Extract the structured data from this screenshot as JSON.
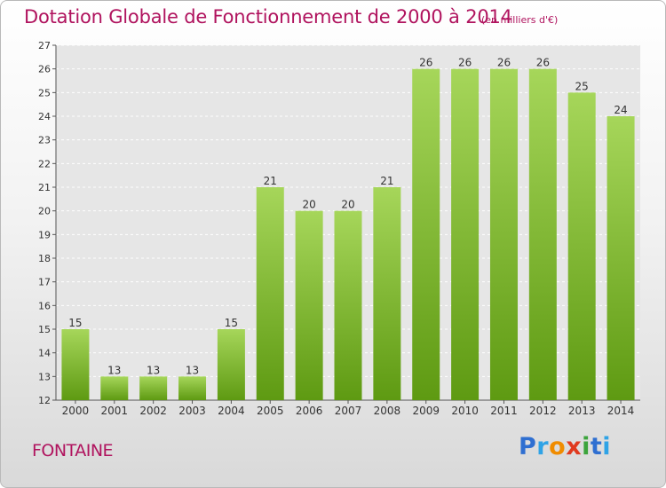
{
  "header": {
    "title": "Dotation Globale de Fonctionnement de 2000 à 2014",
    "subtitle": "(en milliers d'€)"
  },
  "footer": {
    "place": "FONTAINE",
    "logo": {
      "text": "Proxiti",
      "colors": [
        "#2f6fd1",
        "#2fa3e6",
        "#f08c00",
        "#e03a1f",
        "#3ca43c",
        "#2f6fd1",
        "#2fa3e6"
      ]
    }
  },
  "colors": {
    "bar_top": "#a6d65a",
    "bar_bottom": "#5e9a12",
    "title": "#b0135e"
  },
  "chart_data": {
    "type": "bar",
    "categories": [
      "2000",
      "2001",
      "2002",
      "2003",
      "2004",
      "2005",
      "2006",
      "2007",
      "2008",
      "2009",
      "2010",
      "2011",
      "2012",
      "2013",
      "2014"
    ],
    "values": [
      15,
      13,
      13,
      13,
      15,
      21,
      20,
      20,
      21,
      26,
      26,
      26,
      26,
      25,
      24
    ],
    "title": "Dotation Globale de Fonctionnement de 2000 à 2014",
    "subtitle": "(en milliers d'€)",
    "xlabel": "",
    "ylabel": "",
    "ylim": [
      12,
      27
    ],
    "yticks": [
      12,
      13,
      14,
      15,
      16,
      17,
      18,
      19,
      20,
      21,
      22,
      23,
      24,
      25,
      26,
      27
    ],
    "grid": true,
    "legend": "none"
  }
}
